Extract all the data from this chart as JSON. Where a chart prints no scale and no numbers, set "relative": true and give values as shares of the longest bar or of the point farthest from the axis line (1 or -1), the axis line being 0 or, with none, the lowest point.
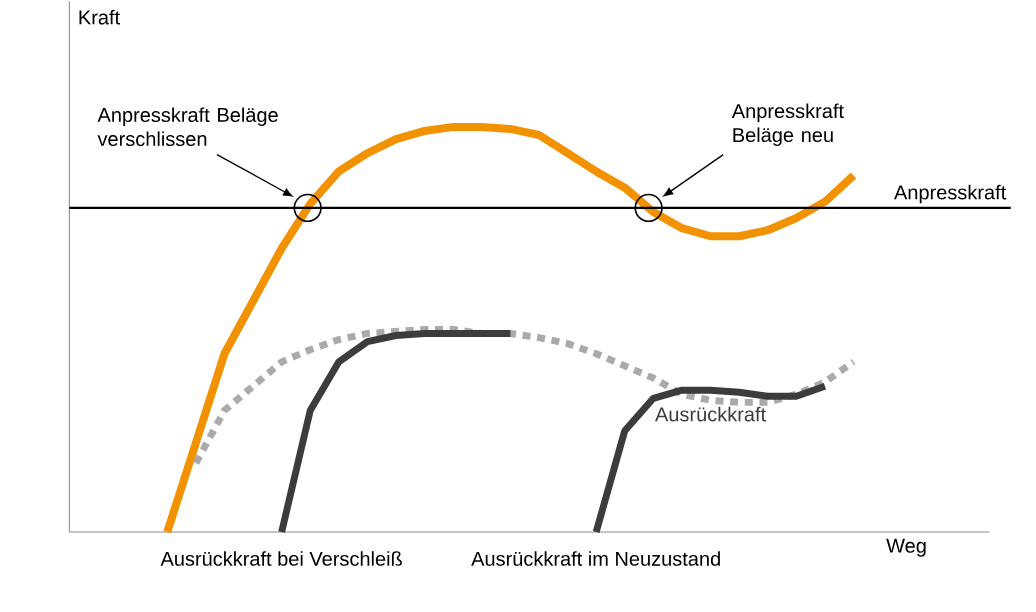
{
  "chart_data": {
    "type": "line",
    "relative": true,
    "xlabel": "Weg",
    "categories": [
      null,
      null,
      null,
      null,
      null,
      null,
      null,
      null,
      null,
      null,
      null,
      null,
      null,
      null,
      null,
      null,
      null,
      null,
      null,
      null,
      null,
      null,
      null,
      null,
      null
    ],
    "series": [
      {
        "color": "#f39200",
        "values": [
          0,
          0.22,
          0.44,
          0.57,
          0.7,
          0.81,
          0.89,
          0.935,
          0.97,
          0.99,
          1.0,
          1.0,
          0.995,
          0.98,
          0.935,
          0.89,
          0.85,
          0.79,
          0.75,
          0.73,
          0.73,
          0.745,
          0.775,
          0.815,
          0.88
        ]
      },
      {
        "color": "#aaaaaa",
        "line_style": "dotted",
        "values": [
          null,
          0.17,
          0.3,
          0.36,
          0.42,
          0.45,
          0.475,
          0.49,
          0.495,
          0.5,
          0.5,
          0.49,
          0.49,
          0.48,
          0.465,
          0.44,
          0.41,
          0.38,
          0.34,
          0.325,
          0.32,
          0.32,
          0.34,
          0.37,
          0.42
        ]
      },
      {
        "color": "#3c3c3c",
        "values": [
          null,
          null,
          null,
          null,
          0,
          0.3,
          0.42,
          0.47,
          0.485,
          0.49,
          0.49,
          0.49,
          0.49,
          null,
          null,
          null,
          null,
          null,
          null,
          null,
          null,
          null,
          null,
          null,
          null
        ]
      },
      {
        "name": "Ausrückkraft",
        "color": "#3c3c3c",
        "values": [
          null,
          null,
          null,
          null,
          null,
          null,
          null,
          null,
          null,
          null,
          null,
          null,
          null,
          null,
          null,
          0,
          0.25,
          0.33,
          0.35,
          0.35,
          0.345,
          0.335,
          0.335,
          0.36,
          null
        ]
      }
    ],
    "ref_lines": [
      {
        "axis": "y",
        "value": 0.8,
        "label": "Anpresskraft",
        "color": "#000000"
      }
    ],
    "annotations": [
      "Kraft",
      "Anpresskraft Beläge verschlissen",
      "Anpresskraft Beläge neu",
      "Ausrückkraft bei Verschleiß",
      "Ausrückkraft im Neuzustand"
    ]
  }
}
